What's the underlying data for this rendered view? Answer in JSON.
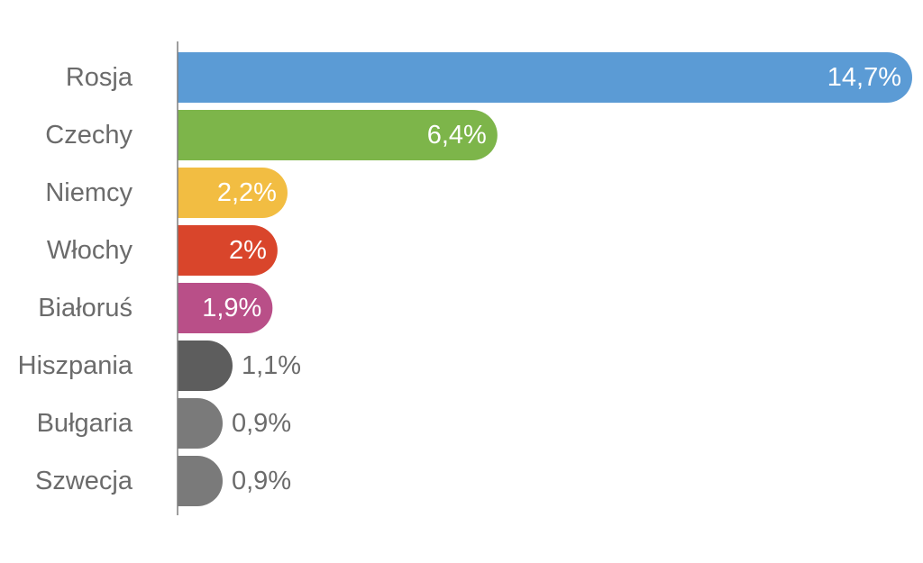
{
  "chart_data": {
    "type": "bar",
    "orientation": "horizontal",
    "categories": [
      "Rosja",
      "Czechy",
      "Niemcy",
      "Włochy",
      "Białoruś",
      "Hiszpania",
      "Bułgaria",
      "Szwecja"
    ],
    "values": [
      14.7,
      6.4,
      2.2,
      2.0,
      1.9,
      1.1,
      0.9,
      0.9
    ],
    "value_labels": [
      "14,7%",
      "6,4%",
      "2,2%",
      "2%",
      "1,9%",
      "1,1%",
      "0,9%",
      "0,9%"
    ],
    "colors": [
      "#5b9bd5",
      "#7db54a",
      "#f2bd42",
      "#d9452b",
      "#b94f88",
      "#5d5d5d",
      "#7a7a7a",
      "#7a7a7a"
    ],
    "label_inside": [
      true,
      true,
      true,
      true,
      true,
      false,
      false,
      false
    ],
    "inside_label_color": "#ffffff",
    "outside_label_color": "#6b6b6b",
    "category_label_color": "#6b6b6b",
    "axis_color": "#7f7f7f",
    "title": "",
    "xlabel": "",
    "ylabel": "",
    "xlim": [
      0,
      14.7
    ],
    "grid": false,
    "legend": "none"
  }
}
